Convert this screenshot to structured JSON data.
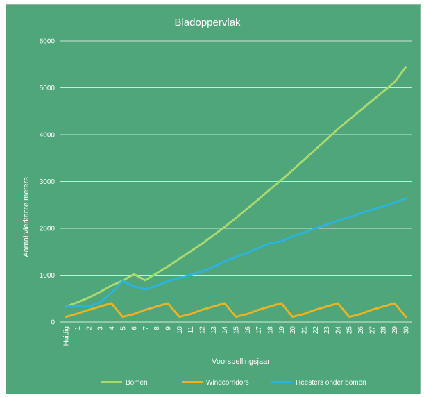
{
  "chart_data": {
    "type": "line",
    "title": "Bladoppervlak",
    "xlabel": "Voorspellingsjaar",
    "ylabel": "Aantal vierkante meters",
    "ylim": [
      0,
      6000
    ],
    "yticks": [
      0,
      1000,
      2000,
      3000,
      4000,
      5000,
      6000
    ],
    "grid": true,
    "legend_position": "bottom",
    "background": "#4ea67a",
    "categories": [
      "Huidig",
      "1",
      "2",
      "3",
      "4",
      "5",
      "6",
      "7",
      "8",
      "9",
      "10",
      "11",
      "12",
      "13",
      "14",
      "15",
      "16",
      "17",
      "18",
      "19",
      "20",
      "21",
      "22",
      "23",
      "24",
      "25",
      "26",
      "27",
      "28",
      "29",
      "30"
    ],
    "series": [
      {
        "name": "Bomen",
        "color": "#a9d96f",
        "values": [
          330,
          420,
          520,
          640,
          780,
          880,
          1020,
          890,
          1040,
          1190,
          1350,
          1510,
          1670,
          1850,
          2030,
          2220,
          2420,
          2620,
          2830,
          3030,
          3240,
          3460,
          3680,
          3900,
          4120,
          4320,
          4520,
          4720,
          4920,
          5120,
          5440
        ]
      },
      {
        "name": "Windcorridors",
        "color": "#e8b325",
        "values": [
          110,
          180,
          260,
          330,
          400,
          110,
          170,
          260,
          330,
          400,
          110,
          170,
          260,
          330,
          400,
          110,
          170,
          260,
          330,
          400,
          110,
          170,
          260,
          330,
          400,
          110,
          170,
          260,
          330,
          400,
          110
        ]
      },
      {
        "name": "Heesters onder bomen",
        "color": "#2cb3df",
        "values": [
          340,
          350,
          330,
          420,
          620,
          870,
          760,
          700,
          780,
          870,
          940,
          1010,
          1080,
          1180,
          1290,
          1390,
          1480,
          1580,
          1680,
          1720,
          1830,
          1910,
          2000,
          2080,
          2160,
          2240,
          2320,
          2400,
          2470,
          2550,
          2640
        ]
      }
    ]
  }
}
